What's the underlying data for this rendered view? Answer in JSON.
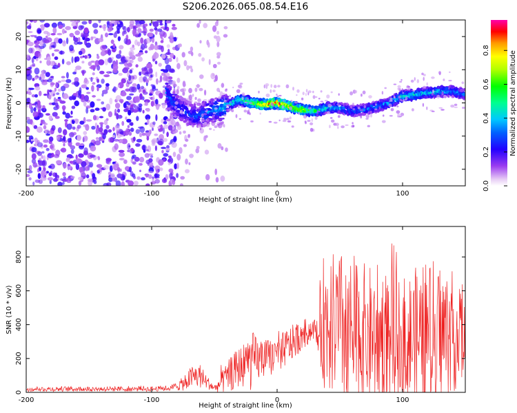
{
  "title": "S206.2026.065.08.54.E16",
  "charts": [
    {
      "type": "heatmap",
      "xlabel": "Height of straight line (km)",
      "ylabel": "Frequency (Hz)",
      "xlim": [
        -200,
        150
      ],
      "ylim": [
        -25,
        25
      ],
      "xticks": [
        -200,
        -100,
        0,
        100
      ],
      "yticks": [
        -20,
        -10,
        0,
        10,
        20
      ],
      "colorbar": {
        "label": "Normalized spectral amplitude",
        "range": [
          0.0,
          0.98
        ],
        "ticks": [
          0.0,
          0.2,
          0.4,
          0.6,
          0.8
        ]
      },
      "noise_region_x": [
        -200,
        -85
      ],
      "ridge": {
        "x": [
          -88,
          -80,
          -72,
          -64,
          -56,
          -48,
          -40,
          -30,
          -20,
          -10,
          0,
          10,
          20,
          30,
          40,
          50,
          60,
          70,
          80,
          90,
          100,
          110,
          120,
          130,
          140,
          150
        ],
        "freq": [
          3,
          -1,
          -3,
          -4,
          -3,
          -2,
          -1,
          1,
          0,
          -0.5,
          0,
          -1,
          -2,
          -2.5,
          -1.5,
          -1.5,
          -2.5,
          -2,
          -1,
          0,
          2,
          2.5,
          3,
          3.5,
          3.5,
          2.5
        ],
        "amplitude": [
          0.35,
          0.3,
          0.28,
          0.3,
          0.35,
          0.4,
          0.45,
          0.55,
          0.7,
          0.9,
          0.95,
          0.85,
          0.8,
          0.6,
          0.45,
          0.4,
          0.35,
          0.35,
          0.4,
          0.4,
          0.45,
          0.5,
          0.45,
          0.45,
          0.4,
          0.35
        ]
      }
    },
    {
      "type": "line",
      "xlabel": "Height of straight line (km)",
      "ylabel": "SNR (10 * v/v)",
      "xlim": [
        -200,
        150
      ],
      "ylim": [
        0,
        980
      ],
      "xticks": [
        -200,
        -100,
        0,
        100
      ],
      "yticks": [
        0,
        200,
        400,
        600,
        800
      ],
      "series": [
        {
          "name": "SNR",
          "color": "#ee2222",
          "x": [
            -200,
            -180,
            -160,
            -140,
            -120,
            -100,
            -85,
            -75,
            -68,
            -62,
            -56,
            -50,
            -45,
            -40,
            -35,
            -30,
            -25,
            -22,
            -20,
            -15,
            -10,
            -5,
            0,
            5,
            10,
            15,
            20,
            25,
            30,
            33,
            36,
            40,
            45,
            50,
            55,
            60,
            65,
            70,
            75,
            80,
            85,
            90,
            95,
            100,
            105,
            110,
            115,
            120,
            125,
            130,
            135,
            140,
            145,
            150
          ],
          "baseline": [
            20,
            20,
            20,
            20,
            20,
            20,
            25,
            50,
            90,
            100,
            60,
            25,
            50,
            90,
            120,
            150,
            170,
            180,
            185,
            190,
            200,
            210,
            220,
            250,
            280,
            310,
            340,
            360,
            380,
            300,
            420,
            420,
            400,
            380,
            370,
            360,
            350,
            340,
            340,
            330,
            330,
            320,
            320,
            300,
            310,
            320,
            330,
            340,
            350,
            360,
            350,
            360,
            330,
            300
          ],
          "spread": [
            15,
            15,
            15,
            15,
            15,
            15,
            15,
            40,
            70,
            80,
            40,
            20,
            60,
            90,
            110,
            120,
            140,
            170,
            180,
            130,
            110,
            110,
            110,
            110,
            110,
            100,
            90,
            80,
            60,
            120,
            380,
            420,
            430,
            450,
            470,
            470,
            450,
            420,
            410,
            420,
            420,
            400,
            380,
            380,
            400,
            420,
            430,
            440,
            440,
            420,
            380,
            360,
            320,
            300
          ]
        }
      ]
    }
  ]
}
